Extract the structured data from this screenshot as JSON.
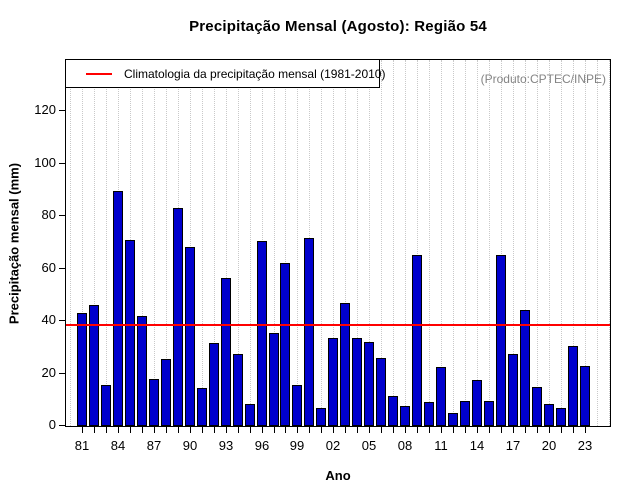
{
  "title": "Precipitação Mensal (Agosto): Região 54",
  "legend": {
    "label": "Climatologia da precipitação mensal (1981-2010)"
  },
  "watermark": "(Produto:CPTEC/INPE)",
  "chart_data": {
    "type": "bar",
    "title": "Precipitação Mensal (Agosto): Região 54",
    "xlabel": "Ano",
    "ylabel": "Precipitação mensal (mm)",
    "ylim": [
      0,
      140
    ],
    "yticks": [
      0,
      20,
      40,
      60,
      80,
      100,
      120
    ],
    "grid": "vertical-dotted",
    "legend_position": "top-left",
    "bar_color": "#0000CD",
    "line_color": "#FF0000",
    "climatology_value": 38.5,
    "years": [
      1981,
      1982,
      1983,
      1984,
      1985,
      1986,
      1987,
      1988,
      1989,
      1990,
      1991,
      1992,
      1993,
      1994,
      1995,
      1996,
      1997,
      1998,
      1999,
      2000,
      2001,
      2002,
      2003,
      2004,
      2005,
      2006,
      2007,
      2008,
      2009,
      2010,
      2011,
      2012,
      2013,
      2014,
      2015,
      2016,
      2017,
      2018,
      2019,
      2020,
      2021,
      2022,
      2023
    ],
    "values": [
      43,
      46,
      15.5,
      89.5,
      71,
      42,
      18,
      25.5,
      83,
      68,
      14.5,
      31.5,
      56.5,
      27.5,
      8.5,
      70.5,
      35.5,
      62,
      15.5,
      71.5,
      7,
      33.5,
      47,
      33.5,
      32,
      26,
      11.5,
      7.5,
      65,
      9,
      22.5,
      5,
      9.5,
      17.5,
      9.5,
      65,
      27.5,
      44,
      15,
      8.5,
      7,
      30.5,
      23
    ],
    "xtick_labels": [
      "81",
      "84",
      "87",
      "90",
      "93",
      "96",
      "99",
      "02",
      "05",
      "08",
      "11",
      "14",
      "17",
      "20",
      "23"
    ],
    "xtick_label_step": 3
  }
}
